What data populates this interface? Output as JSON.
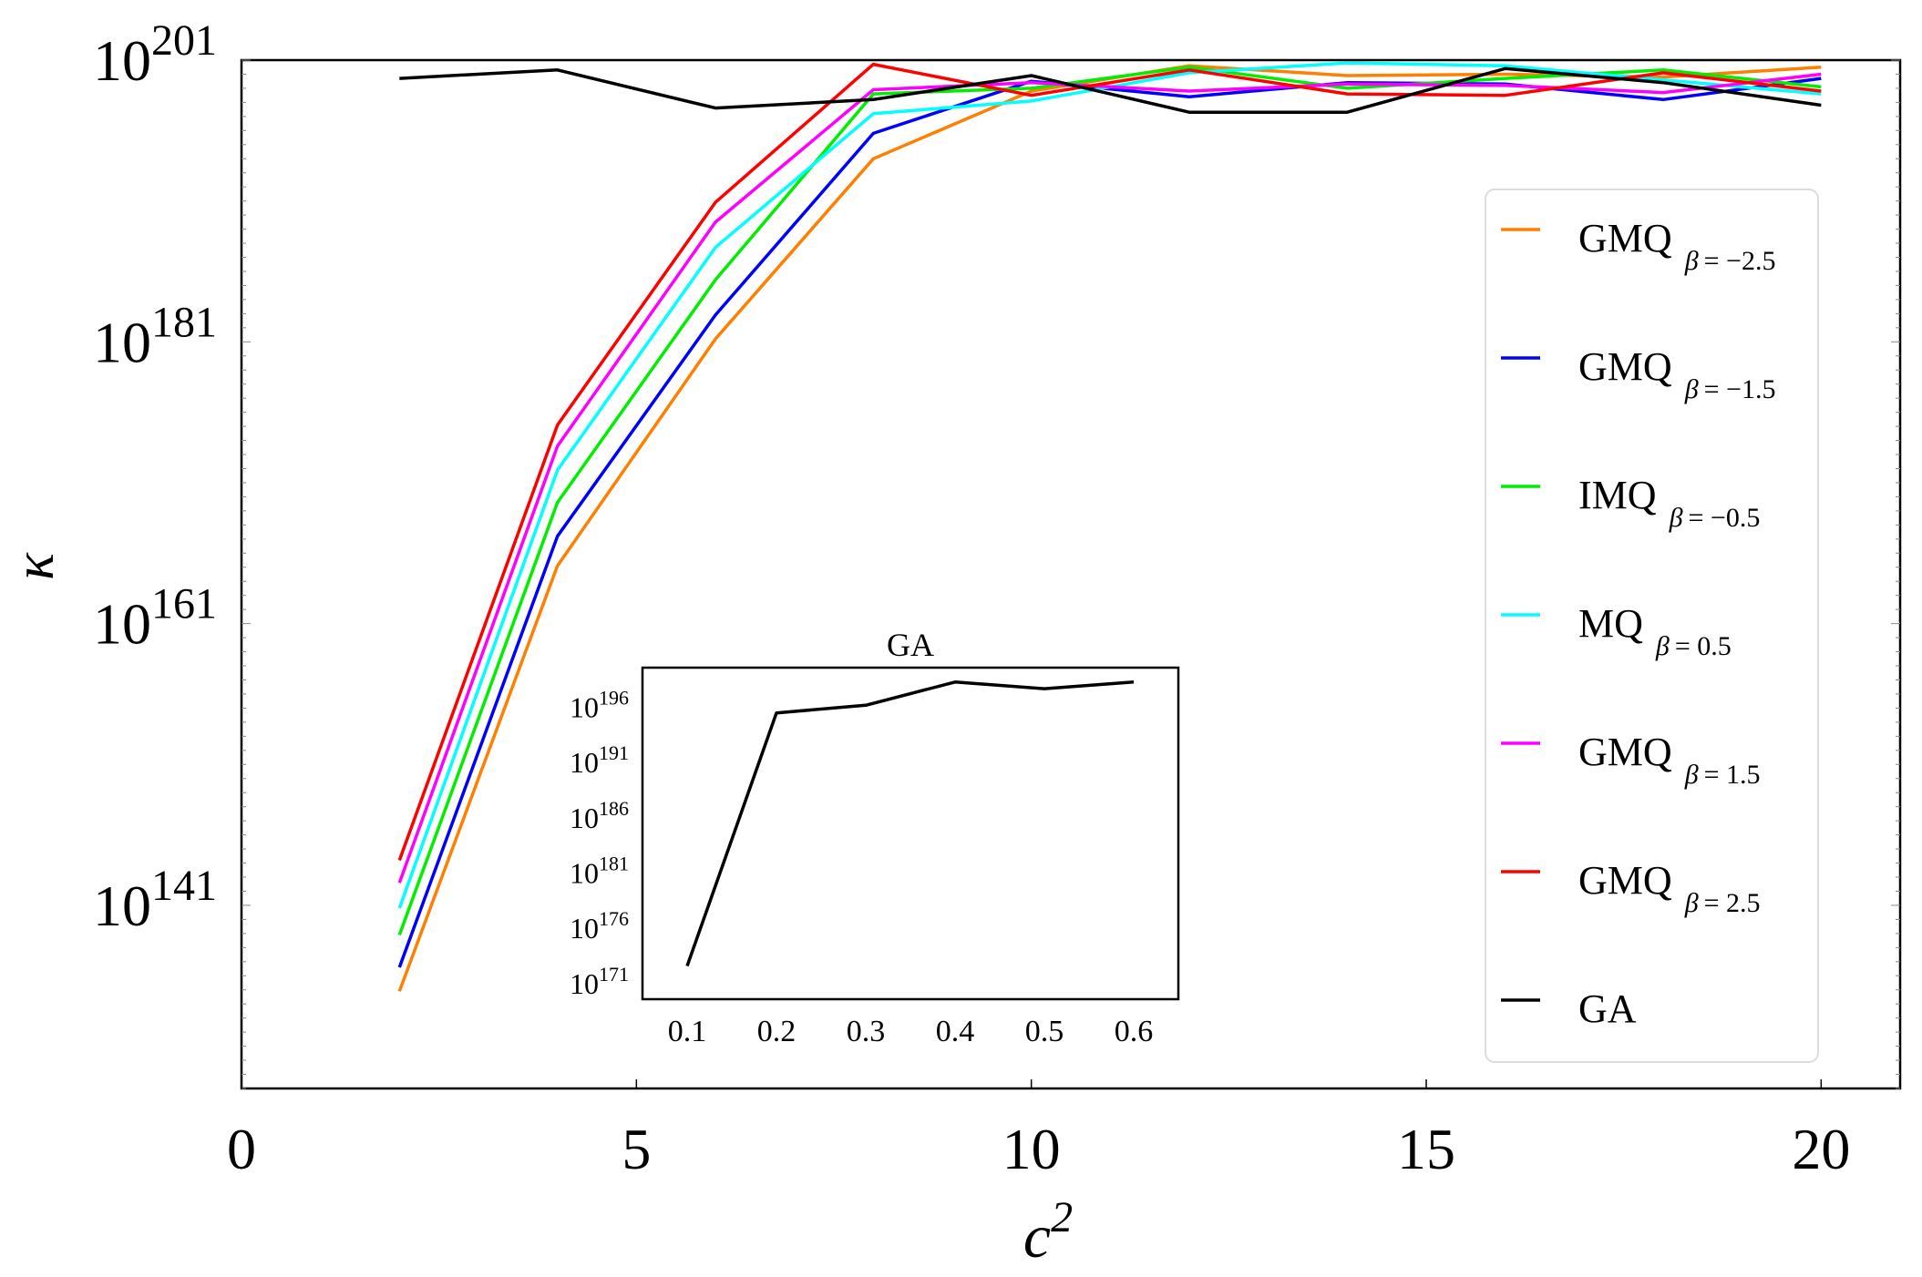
{
  "chart_data": [
    {
      "type": "line",
      "name": "main",
      "xlabel": "c",
      "xlabel_sup": "2",
      "ylabel": "κ",
      "xlim": [
        0,
        21
      ],
      "ylim_exp": [
        128,
        201
      ],
      "yscale": "log",
      "x_ticks": [
        "0",
        "5",
        "10",
        "15",
        "20"
      ],
      "x_tick_values": [
        0,
        5,
        10,
        15,
        20
      ],
      "y_ticks": [
        {
          "base": "10",
          "exp": "201",
          "value": 201
        },
        {
          "base": "10",
          "exp": "181",
          "value": 181
        },
        {
          "base": "10",
          "exp": "161",
          "value": 161
        },
        {
          "base": "10",
          "exp": "141",
          "value": 141
        }
      ],
      "x": [
        2,
        4,
        6,
        8,
        10,
        12,
        14,
        16,
        18,
        20
      ],
      "series": [
        {
          "name": "GMQ",
          "sub": "= −2.5",
          "color": "#ff8000",
          "values_log10": [
            134.9,
            165.1,
            181.2,
            194.0,
            198.8,
            200.6,
            199.9,
            200.0,
            199.8,
            200.5
          ]
        },
        {
          "name": "GMQ",
          "sub": "= −1.5",
          "color": "#0000ff",
          "values_log10": [
            136.6,
            167.2,
            182.9,
            195.8,
            199.5,
            198.4,
            199.4,
            199.3,
            198.2,
            199.7
          ]
        },
        {
          "name": "IMQ",
          "sub": "= −0.5",
          "color": "#00ee00",
          "values_log10": [
            138.9,
            169.6,
            185.4,
            198.6,
            199.0,
            200.5,
            199.0,
            199.7,
            200.3,
            199.1
          ]
        },
        {
          "name": "MQ",
          "sub": "= 0.5",
          "color": "#00ffff",
          "values_log10": [
            140.8,
            171.9,
            187.7,
            197.2,
            198.1,
            200.1,
            200.8,
            200.6,
            199.6,
            198.6
          ]
        },
        {
          "name": "GMQ",
          "sub": "= 1.5",
          "color": "#ff00ff",
          "values_log10": [
            142.6,
            173.6,
            189.5,
            198.9,
            199.4,
            198.8,
            199.3,
            199.2,
            198.7,
            200.0
          ]
        },
        {
          "name": "GMQ",
          "sub": "= 2.5",
          "color": "#ff0000",
          "values_log10": [
            144.2,
            175.1,
            190.9,
            200.7,
            198.5,
            200.3,
            198.6,
            198.5,
            200.1,
            198.8
          ]
        },
        {
          "name": "GA",
          "sub": "",
          "color": "#000000",
          "values_log10": [
            199.7,
            200.3,
            197.6,
            198.2,
            199.9,
            197.3,
            197.3,
            200.4,
            199.4,
            197.8
          ]
        }
      ],
      "legend_position": "right"
    },
    {
      "type": "line",
      "name": "inset",
      "title": "GA",
      "xlim": [
        0.05,
        0.65
      ],
      "ylim_exp": [
        169.5,
        199.5
      ],
      "yscale": "log",
      "x_ticks": [
        "0.1",
        "0.2",
        "0.3",
        "0.4",
        "0.5",
        "0.6"
      ],
      "x_tick_values": [
        0.1,
        0.2,
        0.3,
        0.4,
        0.5,
        0.6
      ],
      "y_ticks": [
        {
          "base": "10",
          "exp": "196",
          "value": 196
        },
        {
          "base": "10",
          "exp": "191",
          "value": 191
        },
        {
          "base": "10",
          "exp": "186",
          "value": 186
        },
        {
          "base": "10",
          "exp": "181",
          "value": 181
        },
        {
          "base": "10",
          "exp": "176",
          "value": 176
        },
        {
          "base": "10",
          "exp": "171",
          "value": 171
        }
      ],
      "series": [
        {
          "name": "GA",
          "color": "#000000",
          "x": [
            0.1,
            0.2,
            0.3,
            0.4,
            0.5,
            0.6
          ],
          "values_log10": [
            172.5,
            195.4,
            196.1,
            198.2,
            197.6,
            198.2
          ]
        }
      ]
    }
  ],
  "legend": {
    "beta_symbol": "β"
  }
}
